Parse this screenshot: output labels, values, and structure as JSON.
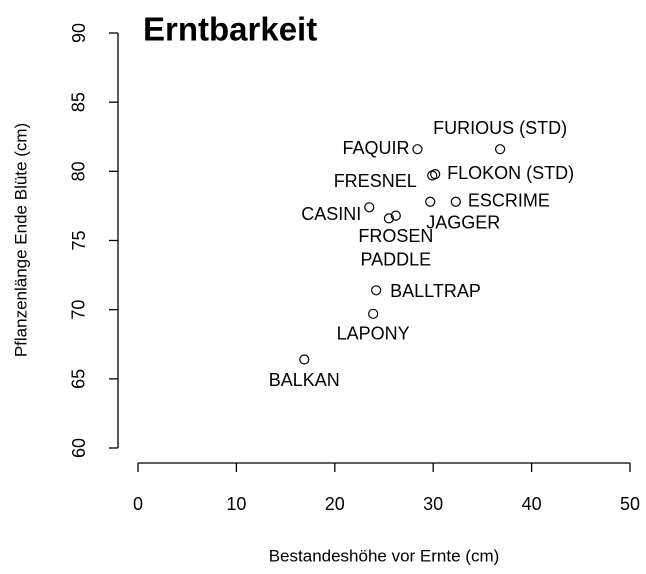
{
  "chart_data": {
    "type": "scatter",
    "title": "Erntbarkeit",
    "x_label": "Bestandeshöhe vor Ernte (cm)",
    "y_label": "Pflanzenlänge Ende Blüte (cm)",
    "labels": [
      "FURIOUS (STD)",
      "FAQUIR",
      "FLOKON (STD)",
      "FRESNEL",
      "ESCRIME",
      "JAGGER",
      "CASINI",
      "FROSEN",
      "PADDLE",
      "BALLTRAP",
      "LAPONY",
      "BALKAN"
    ],
    "x": [
      36.8,
      28.4,
      30.2,
      29.9,
      32.3,
      29.7,
      23.5,
      25.5,
      26.2,
      24.2,
      23.9,
      16.9
    ],
    "values": [
      81.6,
      81.6,
      79.8,
      79.7,
      77.8,
      77.8,
      77.4,
      76.6,
      76.8,
      71.4,
      69.7,
      66.4
    ],
    "xlim": [
      0,
      50
    ],
    "xticks": [
      0,
      10,
      20,
      30,
      40,
      50
    ],
    "ylim": [
      60,
      90
    ],
    "yticks": [
      60,
      65,
      70,
      75,
      80,
      85,
      90
    ]
  }
}
